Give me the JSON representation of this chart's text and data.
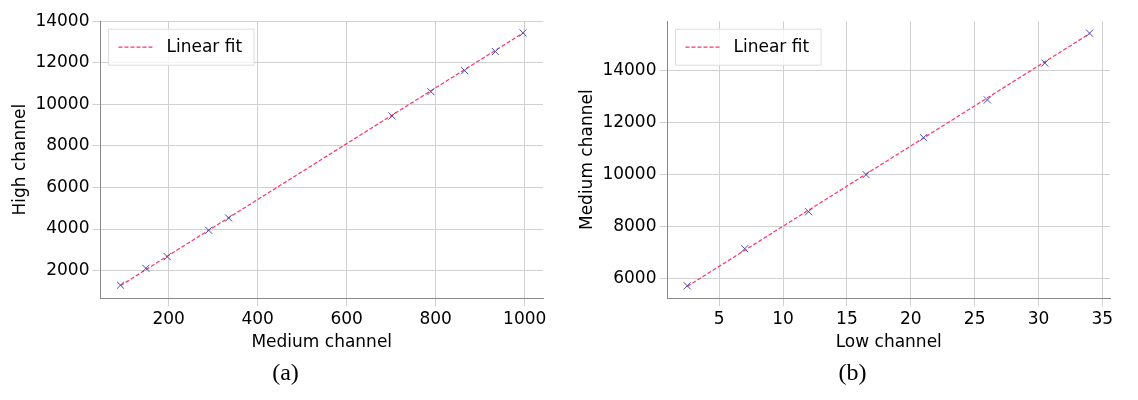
{
  "chart_data": [
    {
      "type": "scatter",
      "xlabel": "Medium channel",
      "ylabel": "High channel",
      "annotations": [
        "(a)"
      ],
      "xlim": [
        47,
        1041
      ],
      "ylim": [
        672,
        14000
      ],
      "xticks": [
        200,
        400,
        600,
        800,
        1000
      ],
      "yticks": [
        2000,
        4000,
        6000,
        8000,
        10000,
        12000,
        14000
      ],
      "grid": true,
      "legend": "top left",
      "series": [
        {
          "type": "scatter",
          "color": "#4b4bb0",
          "marker": "cross",
          "x": [
            92,
            149,
            197,
            290,
            335,
            702,
            789,
            865,
            934,
            996
          ],
          "values": [
            1300,
            2110,
            2670,
            3940,
            4530,
            9440,
            10610,
            11620,
            12540,
            13440
          ]
        },
        {
          "type": "line",
          "name": "Linear fit",
          "color": "#ff3366",
          "line_style": "dashed",
          "marker": "none",
          "x": [
            92,
            996
          ],
          "values": [
            1280,
            13430
          ]
        }
      ]
    },
    {
      "type": "scatter",
      "xlabel": "Low channel",
      "ylabel": "Medium channel",
      "annotations": [
        "(b)"
      ],
      "xlim": [
        0.95,
        35.6
      ],
      "ylim": [
        5245,
        15900
      ],
      "xticks": [
        5,
        10,
        15,
        20,
        25,
        30,
        35
      ],
      "yticks": [
        6000,
        8000,
        10000,
        12000,
        14000
      ],
      "grid": true,
      "legend": "top left",
      "series": [
        {
          "type": "scatter",
          "color": "#4b4bb0",
          "marker": "cross",
          "x": [
            2.5,
            7,
            12,
            16.5,
            21,
            26,
            30.5,
            34
          ],
          "values": [
            5720,
            7150,
            8570,
            10000,
            11420,
            12870,
            14290,
            15440
          ]
        },
        {
          "type": "line",
          "name": "Linear fit",
          "color": "#ff3366",
          "line_style": "dashed",
          "marker": "none",
          "x": [
            2.5,
            34
          ],
          "values": [
            5700,
            15420
          ]
        }
      ]
    }
  ]
}
